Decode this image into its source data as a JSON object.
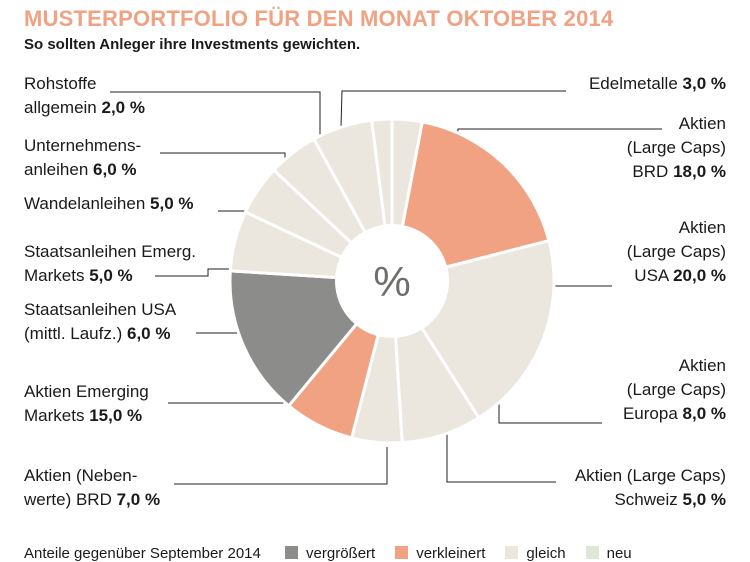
{
  "header": {
    "title": "MUSTERPORTFOLIO FÜR DEN MONAT OKTOBER 2014",
    "subtitle": "So sollten Anleger ihre Investments gewichten."
  },
  "colors": {
    "accent": "#f0a283",
    "increased": "#8c8c8b",
    "decreased": "#f0a283",
    "same": "#ebe7df",
    "new": "#dde9d6"
  },
  "chart_data": {
    "type": "pie",
    "variant": "donut",
    "center_label": "%",
    "slices": [
      {
        "label_lines": [
          "Edelmetalle"
        ],
        "value_text": "3,0 %",
        "value": 3.0,
        "change": "same"
      },
      {
        "label_lines": [
          "Aktien",
          "(Large Caps)",
          "BRD"
        ],
        "value_text": "18,0 %",
        "value": 18.0,
        "change": "decreased"
      },
      {
        "label_lines": [
          "Aktien",
          "(Large Caps)",
          "USA"
        ],
        "value_text": "20,0 %",
        "value": 20.0,
        "change": "same"
      },
      {
        "label_lines": [
          "Aktien",
          "(Large Caps)",
          "Europa"
        ],
        "value_text": "8,0 %",
        "value": 8.0,
        "change": "same"
      },
      {
        "label_lines": [
          "Aktien (Large Caps)",
          "Schweiz"
        ],
        "value_text": "5,0 %",
        "value": 5.0,
        "change": "same"
      },
      {
        "label_lines": [
          "Aktien (Neben-",
          "werte) BRD"
        ],
        "value_text": "7,0 %",
        "value": 7.0,
        "change": "decreased"
      },
      {
        "label_lines": [
          "Aktien Emerging",
          "Markets"
        ],
        "value_text": "15,0 %",
        "value": 15.0,
        "change": "increased"
      },
      {
        "label_lines": [
          "Staatsanleihen USA",
          "(mittl. Laufz.)"
        ],
        "value_text": "6,0 %",
        "value": 6.0,
        "change": "same"
      },
      {
        "label_lines": [
          "Staatsanleihen Emerg.",
          "Markets"
        ],
        "value_text": "5,0 %",
        "value": 5.0,
        "change": "same"
      },
      {
        "label_lines": [
          "Wandelanleihen"
        ],
        "value_text": "5,0 %",
        "value": 5.0,
        "change": "same"
      },
      {
        "label_lines": [
          "Unternehmens-",
          "anleihen"
        ],
        "value_text": "6,0 %",
        "value": 6.0,
        "change": "same"
      },
      {
        "label_lines": [
          "Rohstoffe",
          "allgemein"
        ],
        "value_text": "2,0 %",
        "value": 2.0,
        "change": "same"
      }
    ],
    "legend": {
      "title": "Anteile gegenüber September 2014",
      "items": [
        {
          "key": "increased",
          "label": "vergrößert"
        },
        {
          "key": "decreased",
          "label": "verkleinert"
        },
        {
          "key": "same",
          "label": "gleich"
        },
        {
          "key": "new",
          "label": "neu"
        }
      ]
    }
  }
}
